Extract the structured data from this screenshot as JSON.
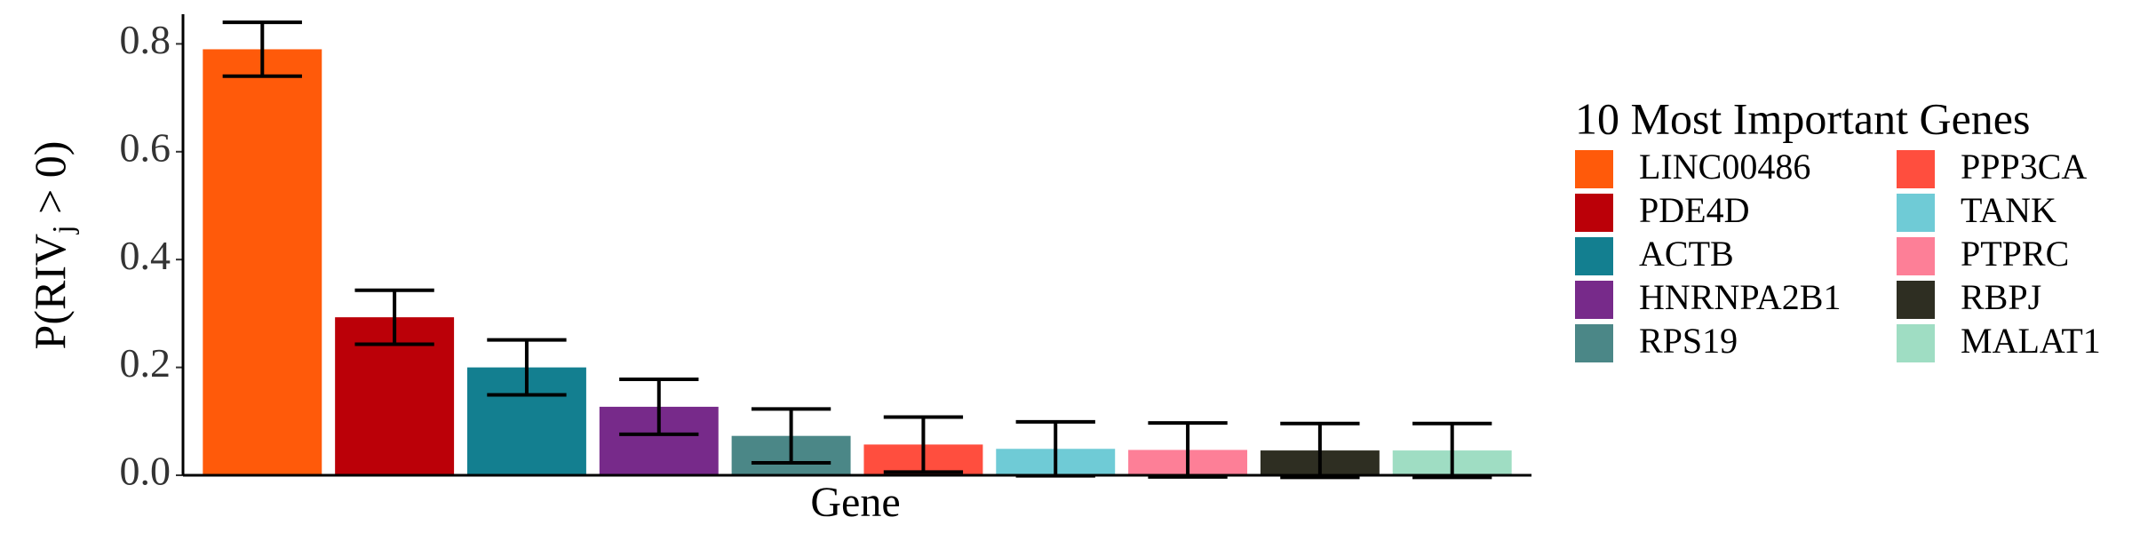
{
  "chart_data": {
    "type": "bar",
    "xlabel": "Gene",
    "ylabel_parts": [
      "P(RIV",
      "j",
      " > 0)"
    ],
    "legend_title": "10 Most Important Genes",
    "categories": [
      "LINC00486",
      "PDE4D",
      "ACTB",
      "HNRNPA2B1",
      "RPS19",
      "PPP3CA",
      "TANK",
      "PTPRC",
      "RBPJ",
      "MALAT1"
    ],
    "values": [
      0.79,
      0.293,
      0.2,
      0.127,
      0.073,
      0.057,
      0.049,
      0.047,
      0.046,
      0.046
    ],
    "errors": [
      0.05,
      0.05,
      0.051,
      0.051,
      0.05,
      0.051,
      0.05,
      0.05,
      0.05,
      0.05
    ],
    "colors": [
      "#FF5A0A",
      "#BB0008",
      "#137F90",
      "#772A8A",
      "#4B8787",
      "#FF4E3E",
      "#6FCBD6",
      "#FD7F97",
      "#2E2E22",
      "#9FDDC3"
    ],
    "ylim": [
      0,
      0.855
    ],
    "yticks": [
      {
        "value": 0,
        "label": "0.0"
      },
      0.2,
      0.4,
      0.6,
      0.8
    ],
    "grid": false
  }
}
